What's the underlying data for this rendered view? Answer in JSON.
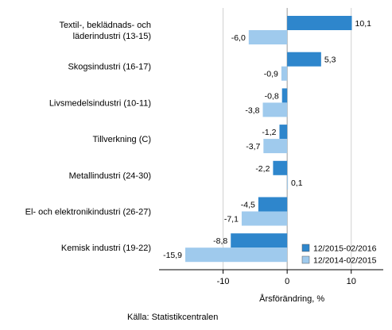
{
  "chart_data": {
    "type": "bar",
    "orientation": "horizontal",
    "categories": [
      [
        "Textil-, beklädnads- och",
        "läderindustri (13-15)"
      ],
      [
        "Skogsindustri (16-17)"
      ],
      [
        "Livsmedelsindustri (10-11)"
      ],
      [
        "Tillverkning (C)"
      ],
      [
        "Metallindustri (24-30)"
      ],
      [
        "El- och elektronikindustri (26-27)"
      ],
      [
        "Kemisk industri (19-22)"
      ]
    ],
    "series": [
      {
        "name": "12/2015-02/2016",
        "color": "#2e86cc",
        "values": [
          10.1,
          5.3,
          -0.8,
          -1.2,
          -2.2,
          -4.5,
          -8.8
        ],
        "labels": [
          "10,1",
          "5,3",
          "-0,8",
          "-1,2",
          "-2,2",
          "-4,5",
          "-8,8"
        ]
      },
      {
        "name": "12/2014-02/2015",
        "color": "#9fcaed",
        "values": [
          -6.0,
          -0.9,
          -3.8,
          -3.7,
          0.1,
          -7.1,
          -15.9
        ],
        "labels": [
          "-6,0",
          "-0,9",
          "-3,8",
          "-3,7",
          "0,1",
          "-7,1",
          "-15,9"
        ]
      }
    ],
    "xlim": [
      -20,
      15
    ],
    "xticks": [
      -10,
      0,
      10
    ],
    "xtick_labels": [
      "-10",
      "0",
      "10"
    ],
    "xlabel": "Årsförändring, %",
    "grid": true,
    "legend_position": "bottom-right"
  },
  "source": "Källa: Statistikcentralen"
}
